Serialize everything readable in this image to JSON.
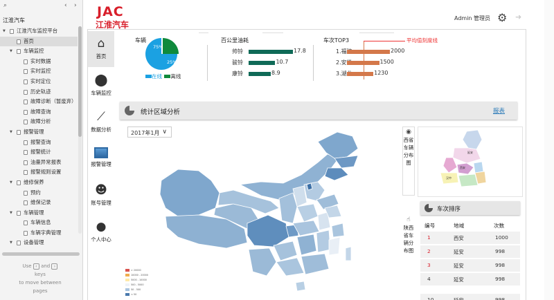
{
  "outline": {
    "search_icon": "search-icon",
    "title": "江淮汽车",
    "items": [
      {
        "label": "江淮汽车监控平台",
        "level": 0,
        "twisty": "▼",
        "selected": false
      },
      {
        "label": "首页",
        "level": 1,
        "twisty": "",
        "selected": true
      },
      {
        "label": "车辆监控",
        "level": 1,
        "twisty": "▼",
        "selected": false
      },
      {
        "label": "实时数据",
        "level": 2,
        "twisty": "",
        "selected": false
      },
      {
        "label": "实时监控",
        "level": 2,
        "twisty": "",
        "selected": false
      },
      {
        "label": "实时定位",
        "level": 2,
        "twisty": "",
        "selected": false
      },
      {
        "label": "历史轨迹",
        "level": 2,
        "twisty": "",
        "selected": false
      },
      {
        "label": "故障诊断（暂废弃）",
        "level": 2,
        "twisty": "",
        "selected": false
      },
      {
        "label": "故障查询",
        "level": 2,
        "twisty": "",
        "selected": false
      },
      {
        "label": "故障分析",
        "level": 2,
        "twisty": "",
        "selected": false
      },
      {
        "label": "报警管理",
        "level": 1,
        "twisty": "▼",
        "selected": false
      },
      {
        "label": "报警查询",
        "level": 2,
        "twisty": "",
        "selected": false
      },
      {
        "label": "报警统计",
        "level": 2,
        "twisty": "",
        "selected": false
      },
      {
        "label": "油量异常报表",
        "level": 2,
        "twisty": "",
        "selected": false
      },
      {
        "label": "报警规则设置",
        "level": 2,
        "twisty": "",
        "selected": false
      },
      {
        "label": "维修保养",
        "level": 1,
        "twisty": "▼",
        "selected": false
      },
      {
        "label": "预约",
        "level": 2,
        "twisty": "",
        "selected": false
      },
      {
        "label": "维保记录",
        "level": 2,
        "twisty": "",
        "selected": false
      },
      {
        "label": "车辆管理",
        "level": 1,
        "twisty": "▼",
        "selected": false
      },
      {
        "label": "车辆信息",
        "level": 2,
        "twisty": "",
        "selected": false
      },
      {
        "label": "车辆字典管理",
        "level": 2,
        "twisty": "",
        "selected": false
      },
      {
        "label": "设备管理",
        "level": 1,
        "twisty": "▼",
        "selected": false
      }
    ],
    "hint": {
      "use": "Use",
      "and": "and",
      "keys": "keys",
      "rest": "to move between",
      "pages": "pages"
    }
  },
  "header": {
    "logo_text": "JAC",
    "logo_cn": "江淮汽车",
    "admin": "Admin 管理员",
    "brand_color": "#d81e2a"
  },
  "nav": [
    {
      "label": "首页",
      "icon": "home-icon",
      "glyph": "⌂",
      "active": true
    },
    {
      "label": "车辆监控",
      "icon": "location-pin-icon",
      "glyph": "⬤",
      "active": false
    },
    {
      "label": "数据分析",
      "icon": "trend-chart-icon",
      "glyph": "⟋",
      "active": false
    },
    {
      "label": "报警管理",
      "icon": "image-icon",
      "glyph": "",
      "active": false
    },
    {
      "label": "账号管理",
      "icon": "group-icon",
      "glyph": "☻",
      "active": false
    },
    {
      "label": "个人中心",
      "icon": "person-icon",
      "glyph": "●",
      "active": false
    }
  ],
  "stats": {
    "vehicles": {
      "title": "车辆",
      "legend_online": "在线",
      "legend_offline": "离线",
      "online_pct": 75,
      "offline_pct": 25,
      "online_label": "75%",
      "offline_label": "25%",
      "online_color": "#1ba1e2",
      "offline_color": "#0f8a3c"
    },
    "fuel": {
      "title": "百公里油耗",
      "rows": [
        {
          "label": "帅铃",
          "value": "17.8",
          "num": 17.8
        },
        {
          "label": "骏铃",
          "value": "10.7",
          "num": 10.7
        },
        {
          "label": "康铃",
          "value": "8.9",
          "num": 8.9
        }
      ]
    },
    "top3": {
      "title": "车次TOP3",
      "avg_label": "平均值刻度线",
      "rows": [
        {
          "label": "1.福建",
          "value": "2000",
          "num": 2000
        },
        {
          "label": "2.安徽",
          "value": "1500",
          "num": 1500
        },
        {
          "label": "3.湖北",
          "value": "1230",
          "num": 1230
        }
      ]
    }
  },
  "region": {
    "title": "统计区域分析",
    "report_link": "报表",
    "month": "2017年1月",
    "legend": [
      {
        "label": "> 20000",
        "color": "#d9534f"
      },
      {
        "label": "10000 - 20000",
        "color": "#f0ad4e"
      },
      {
        "label": "5000 - 10000",
        "color": "#ffe9a8"
      },
      {
        "label": "500 - 5000",
        "color": "#eef3f8"
      },
      {
        "label": "50 - 500",
        "color": "#a9c4de"
      },
      {
        "label": "< 50",
        "color": "#4a79ad"
      }
    ]
  },
  "right": {
    "prov_map_label": "西省车辆分布图",
    "prov_map_icon": "eye-icon",
    "rank_label": "陕西省车辆分布图",
    "rank_icon": "thumb-up-icon",
    "rank_title": "车次排序",
    "columns": [
      "编号",
      "地域",
      "次数"
    ],
    "rows": [
      {
        "no": "1",
        "region": "西安",
        "count": "1000",
        "red": true
      },
      {
        "no": "2",
        "region": "延安",
        "count": "998",
        "red": true
      },
      {
        "no": "3",
        "region": "延安",
        "count": "998",
        "red": true
      },
      {
        "no": "4",
        "region": "延安",
        "count": "998",
        "red": false
      },
      {
        "no": "10",
        "region": "延安",
        "count": "998",
        "red": false
      }
    ]
  }
}
